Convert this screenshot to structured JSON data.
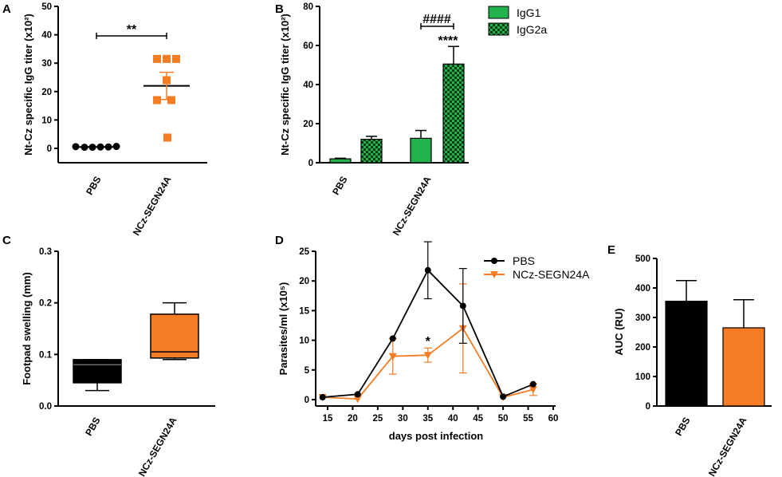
{
  "colors": {
    "black": "#000000",
    "orange": "#f47c22",
    "green": "#22b14c",
    "check_dark": "#0a3a14"
  },
  "chart_data": [
    {
      "panel": "A",
      "type": "scatter",
      "ylabel": "Nt-Cz specific IgG titer (x10²)",
      "ylim": [
        0,
        50
      ],
      "yticks": [
        0,
        10,
        20,
        30,
        40,
        50
      ],
      "categories": [
        "PBS",
        "NCz-SEGN24A"
      ],
      "groups": [
        {
          "name": "PBS",
          "marker": "circle",
          "color": "black",
          "values": [
            0.6,
            0.4,
            0.4,
            0.5,
            0.5,
            0.7
          ],
          "mean": 0.5,
          "sem": 0.1
        },
        {
          "name": "NCz-SEGN24A",
          "marker": "square",
          "color": "orange",
          "values": [
            31.5,
            31.5,
            31.5,
            24,
            17,
            17,
            3.8
          ],
          "mean": 22,
          "sem": 4.8
        }
      ],
      "annotations": [
        {
          "text": "**",
          "between": [
            "PBS",
            "NCz-SEGN24A"
          ]
        }
      ]
    },
    {
      "panel": "B",
      "type": "bar",
      "ylabel": "Nt-Cz specific IgG titer (x10²)",
      "ylim": [
        0,
        80
      ],
      "yticks": [
        0,
        20,
        40,
        60,
        80
      ],
      "categories": [
        "PBS",
        "NCz-SEGN24A"
      ],
      "series": [
        {
          "name": "IgG1",
          "fill": "solid",
          "values": [
            2,
            12.5
          ],
          "errors": [
            0.3,
            4
          ]
        },
        {
          "name": "IgG2a",
          "fill": "checkered",
          "values": [
            12,
            50.5
          ],
          "errors": [
            1.5,
            9
          ]
        }
      ],
      "annotations": [
        {
          "text": "####",
          "group": "NCz-SEGN24A"
        },
        {
          "text": "****",
          "group": "NCz-SEGN24A",
          "series": "IgG2a"
        }
      ]
    },
    {
      "panel": "C",
      "type": "box",
      "ylabel": "Footpad swelling (mm)",
      "ylim": [
        0,
        0.3
      ],
      "yticks": [
        "0.0",
        "0.1",
        "0.2",
        "0.3"
      ],
      "categories": [
        "PBS",
        "NCz-SEGN24A"
      ],
      "boxes": [
        {
          "name": "PBS",
          "color": "black",
          "min": 0.03,
          "q1": 0.045,
          "median": 0.08,
          "q3": 0.09,
          "max": 0.09
        },
        {
          "name": "NCz-SEGN24A",
          "color": "orange",
          "min": 0.09,
          "q1": 0.093,
          "median": 0.105,
          "q3": 0.178,
          "max": 0.2
        }
      ]
    },
    {
      "panel": "D",
      "type": "line",
      "xlabel": "days post infection",
      "ylabel": "Parasites/ml (x10⁵)",
      "xlim": [
        13,
        60
      ],
      "ylim": [
        0,
        25
      ],
      "xticks": [
        15,
        20,
        25,
        30,
        35,
        40,
        45,
        50,
        55,
        60
      ],
      "yticks": [
        0,
        5,
        10,
        15,
        20,
        25
      ],
      "x": [
        14,
        21,
        28,
        35,
        42,
        50,
        56
      ],
      "series": [
        {
          "name": "PBS",
          "marker": "circle",
          "color": "black",
          "values": [
            0.4,
            0.9,
            10.3,
            21.8,
            15.8,
            0.5,
            2.6
          ],
          "errors": [
            0,
            0,
            0,
            4.8,
            6.3,
            0,
            0
          ]
        },
        {
          "name": "NCz-SEGN24A",
          "marker": "triangle-down",
          "color": "orange",
          "values": [
            0.4,
            0.1,
            7.3,
            7.5,
            12,
            0.4,
            1.7
          ],
          "errors": [
            0,
            0,
            3,
            1.2,
            7.5,
            0,
            1
          ]
        }
      ],
      "annotations": [
        {
          "text": "*",
          "x": 35
        }
      ]
    },
    {
      "panel": "E",
      "type": "bar",
      "ylabel": "AUC (RU)",
      "ylim": [
        0,
        500
      ],
      "yticks": [
        0,
        100,
        200,
        300,
        400,
        500
      ],
      "categories": [
        "PBS",
        "NCz-SEGN24A"
      ],
      "values": [
        355,
        265
      ],
      "errors": [
        70,
        95
      ],
      "bar_colors": [
        "black",
        "orange"
      ]
    }
  ]
}
